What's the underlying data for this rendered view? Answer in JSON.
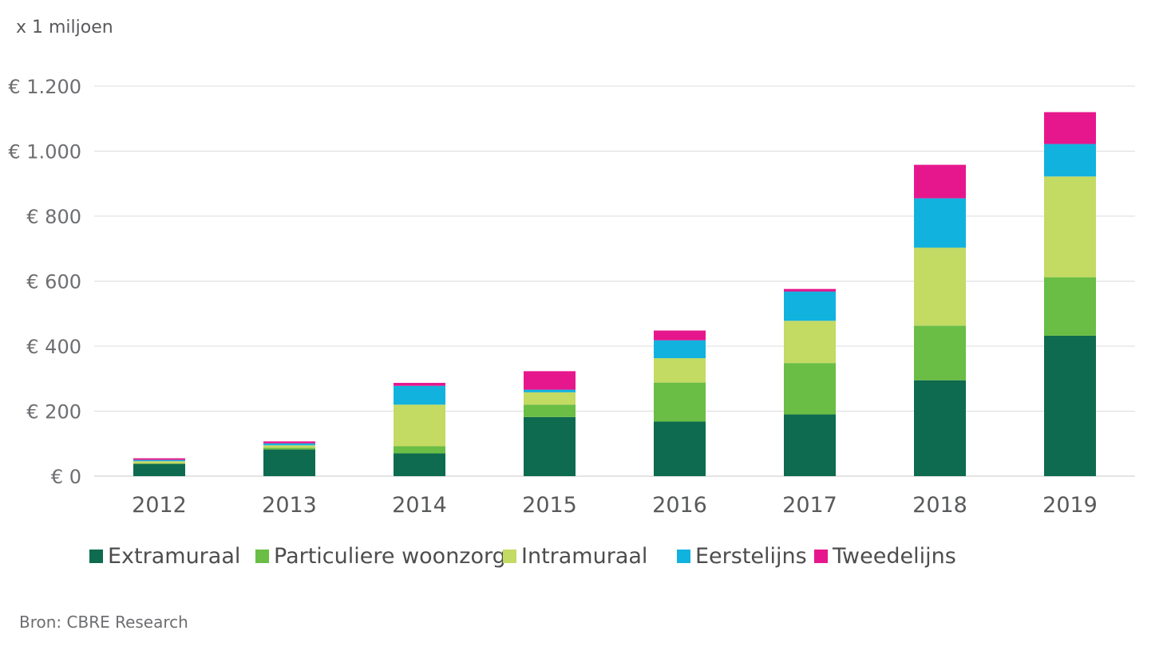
{
  "unit_label": "x 1 miljoen",
  "source": "Bron: CBRE Research",
  "chart_data": {
    "type": "bar",
    "stacked": true,
    "categories": [
      "2012",
      "2013",
      "2014",
      "2015",
      "2016",
      "2017",
      "2018",
      "2019"
    ],
    "series": [
      {
        "name": "Extramuraal",
        "color": "#0e6b4f",
        "values": [
          38,
          82,
          70,
          182,
          168,
          190,
          295,
          432
        ]
      },
      {
        "name": "Particuliere woonzorg",
        "color": "#6abd45",
        "values": [
          0,
          5,
          22,
          38,
          120,
          158,
          168,
          180
        ]
      },
      {
        "name": "Intramuraal",
        "color": "#c3da63",
        "values": [
          8,
          8,
          128,
          38,
          75,
          130,
          240,
          310
        ]
      },
      {
        "name": "Eerstelijns",
        "color": "#12b2df",
        "values": [
          4,
          6,
          58,
          8,
          55,
          90,
          152,
          100
        ]
      },
      {
        "name": "Tweedelijns",
        "color": "#e6178c",
        "values": [
          5,
          6,
          9,
          57,
          30,
          8,
          103,
          98
        ]
      }
    ],
    "ylim": [
      0,
      1200
    ],
    "yticks": [
      0,
      200,
      400,
      600,
      800,
      1000,
      1200
    ],
    "ytick_labels": [
      "€ 0",
      "€ 200",
      "€ 400",
      "€ 600",
      "€ 800",
      "€ 1.000",
      "€ 1.200"
    ],
    "grid": true,
    "legend_position": "bottom"
  }
}
